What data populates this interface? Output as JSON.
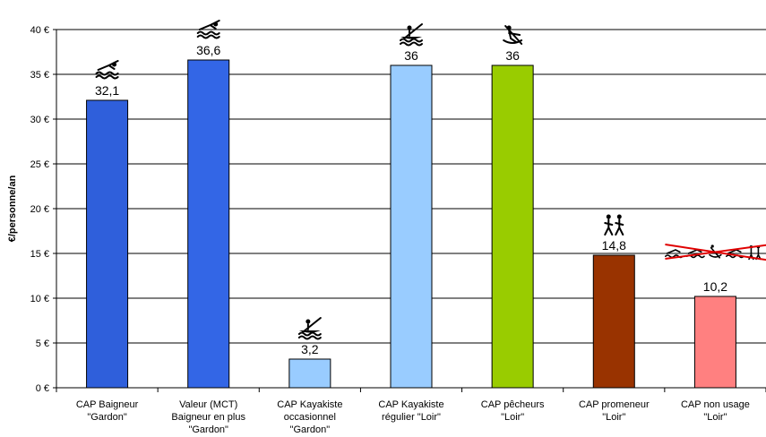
{
  "chart_data": {
    "type": "bar",
    "ylabel": "€/personne/an",
    "ylim": [
      0,
      40
    ],
    "yticks": [
      "0 €",
      "5 €",
      "10 €",
      "15 €",
      "20 €",
      "25 €",
      "30 €",
      "35 €",
      "40 €"
    ],
    "grid": true,
    "categories": [
      [
        "CAP Baigneur",
        "\"Gardon\""
      ],
      [
        "Valeur (MCT)",
        "Baigneur en plus",
        "\"Gardon\""
      ],
      [
        "CAP Kayakiste",
        "occasionnel",
        "\"Gardon\""
      ],
      [
        "CAP Kayakiste",
        "régulier \"Loir\""
      ],
      [
        "CAP pêcheurs",
        "\"Loir\""
      ],
      [
        "CAP promeneur",
        "\"Loir\""
      ],
      [
        "CAP non usage",
        "\"Loir\""
      ]
    ],
    "values": [
      32.1,
      36.6,
      3.2,
      36,
      36,
      14.8,
      10.2
    ],
    "value_labels": [
      "32,1",
      "36,6",
      "3,2",
      "36",
      "36",
      "14,8",
      "10,2"
    ],
    "colors": [
      "#2f5fdb",
      "#3366e6",
      "#99ccff",
      "#99ccff",
      "#99cc00",
      "#993300",
      "#ff8080"
    ],
    "icons": [
      "swimmer-icon",
      "swimmer-icon",
      "kayaker-icon",
      "kayaker-icon",
      "fisher-icon",
      "walkers-icon",
      "crossed-out-users-icon"
    ]
  }
}
